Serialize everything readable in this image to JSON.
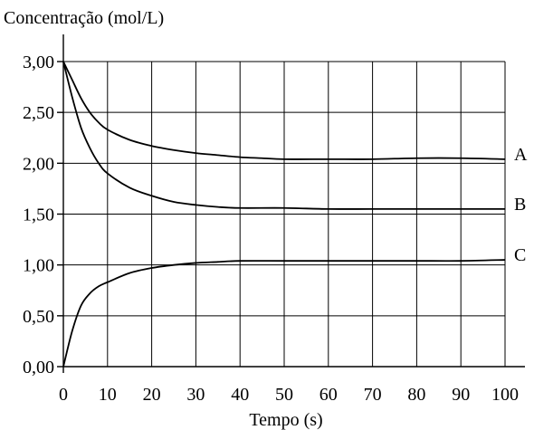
{
  "chart_data": {
    "type": "line",
    "xlabel": "Tempo (s)",
    "ylabel": "Concentração (mol/L)",
    "xlim": [
      0,
      100
    ],
    "ylim": [
      0,
      3
    ],
    "grid": true,
    "x_ticks": [
      0,
      10,
      20,
      30,
      40,
      50,
      60,
      70,
      80,
      90,
      100
    ],
    "x_tick_labels": [
      "0",
      "10",
      "20",
      "30",
      "40",
      "50",
      "60",
      "70",
      "80",
      "90",
      "100"
    ],
    "y_ticks": [
      0,
      0.5,
      1,
      1.5,
      2,
      2.5,
      3
    ],
    "y_tick_labels": [
      "0,00",
      "0,50",
      "1,00",
      "1,50",
      "2,00",
      "2,50",
      "3,00"
    ],
    "series": [
      {
        "name": "A",
        "x": [
          0,
          2,
          4,
          6,
          8,
          10,
          15,
          20,
          25,
          30,
          35,
          40,
          45,
          50,
          60,
          70,
          80,
          90,
          100
        ],
        "y": [
          3.0,
          2.82,
          2.64,
          2.5,
          2.4,
          2.33,
          2.23,
          2.17,
          2.13,
          2.1,
          2.08,
          2.06,
          2.05,
          2.04,
          2.04,
          2.04,
          2.05,
          2.05,
          2.04
        ]
      },
      {
        "name": "B",
        "x": [
          0,
          2,
          4,
          6,
          8,
          10,
          15,
          20,
          25,
          30,
          35,
          40,
          50,
          60,
          70,
          80,
          90,
          100
        ],
        "y": [
          3.0,
          2.65,
          2.35,
          2.15,
          2.0,
          1.9,
          1.76,
          1.68,
          1.62,
          1.59,
          1.57,
          1.56,
          1.56,
          1.55,
          1.55,
          1.55,
          1.55,
          1.55
        ]
      },
      {
        "name": "C",
        "x": [
          0,
          2,
          4,
          6,
          8,
          10,
          15,
          20,
          25,
          30,
          35,
          40,
          50,
          60,
          70,
          80,
          90,
          100
        ],
        "y": [
          0.0,
          0.35,
          0.6,
          0.72,
          0.79,
          0.83,
          0.92,
          0.97,
          1.0,
          1.02,
          1.03,
          1.04,
          1.04,
          1.04,
          1.04,
          1.04,
          1.04,
          1.05
        ]
      }
    ]
  }
}
